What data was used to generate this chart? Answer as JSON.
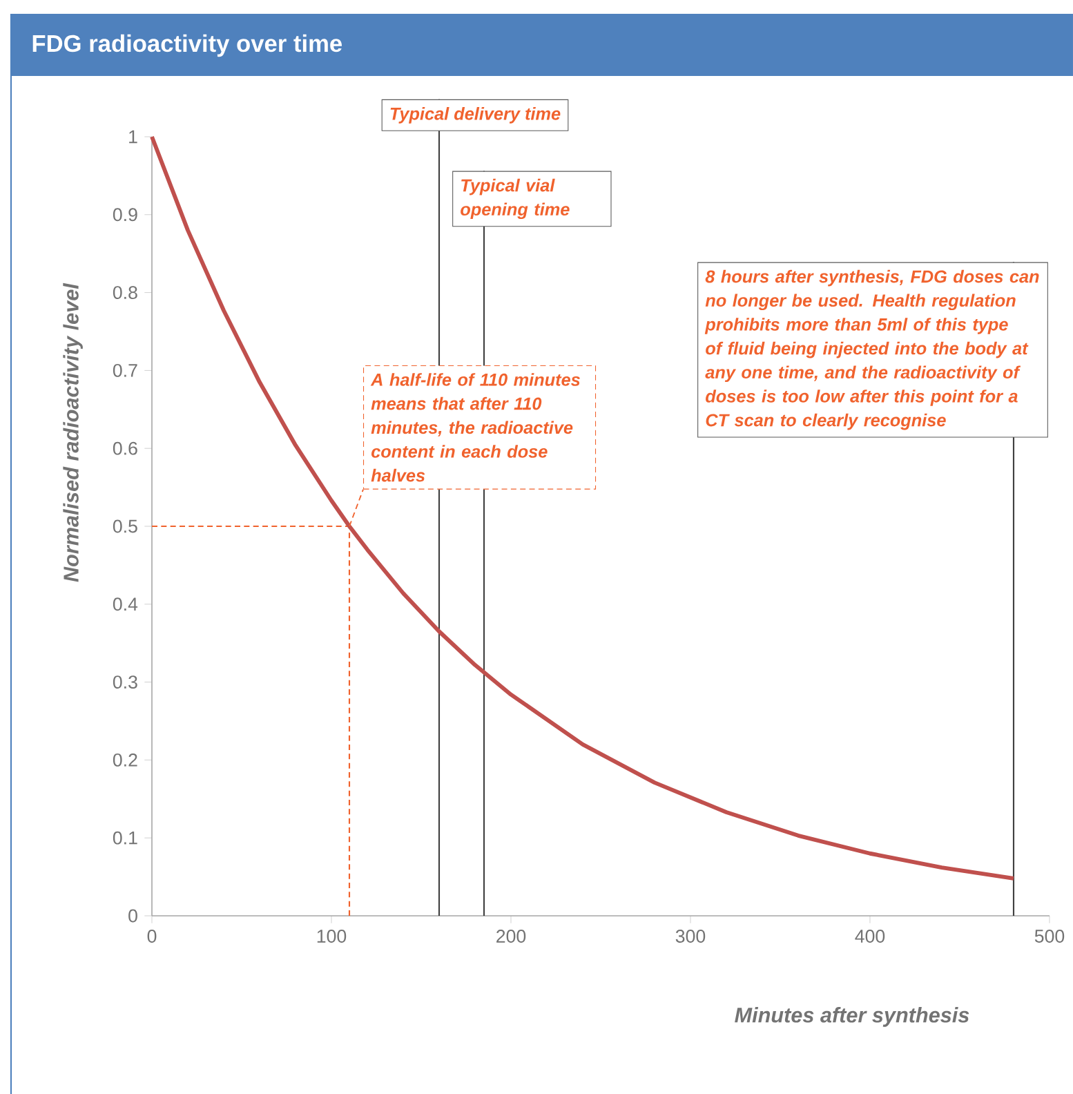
{
  "chart_data": {
    "type": "line",
    "title": "FDG radioactivity over time",
    "xlabel": "Minutes after synthesis",
    "ylabel": "Normalised radioactivity level",
    "x": [
      0,
      20,
      40,
      60,
      80,
      100,
      110,
      120,
      140,
      160,
      180,
      200,
      240,
      280,
      320,
      360,
      400,
      440,
      480
    ],
    "series": [
      {
        "color": "#c0504d",
        "values": [
          1,
          0.88,
          0.777,
          0.685,
          0.604,
          0.533,
          0.5,
          0.47,
          0.414,
          0.365,
          0.322,
          0.284,
          0.22,
          0.171,
          0.133,
          0.103,
          0.08,
          0.062,
          0.048
        ]
      }
    ],
    "xlim": [
      0,
      500
    ],
    "ylim": [
      0,
      1
    ],
    "xticks": [
      0,
      100,
      200,
      300,
      400,
      500
    ],
    "yticks": [
      0,
      0.1,
      0.2,
      0.3,
      0.4,
      0.5,
      0.6,
      0.7,
      0.8,
      0.9,
      1
    ],
    "ref_lines": [
      {
        "axis": "x",
        "value": 160,
        "label": "Typical delivery time",
        "color": "#404040"
      },
      {
        "axis": "x",
        "value": 185,
        "label": "Typical vial opening time",
        "color": "#404040"
      },
      {
        "axis": "x",
        "value": 480,
        "label": "8 hours after synthesis, FDG doses can no longer be used. Health regulation prohibits more than 5ml of this type of fluid being injected into the body at any one time, and the radioactivity of doses is too low after this point for a CT scan to clearly recognise",
        "color": "#404040"
      },
      {
        "axis": "x",
        "value": 110,
        "color": "#f0622d",
        "line_style": "dashed"
      },
      {
        "axis": "y",
        "value": 0.5,
        "color": "#f0622d",
        "line_style": "dashed"
      }
    ],
    "annotations": [
      {
        "text": "A half-life of 110 minutes means that after 110 minutes, the radioactive content in each dose halves",
        "x": 110,
        "y": 0.5
      }
    ]
  }
}
